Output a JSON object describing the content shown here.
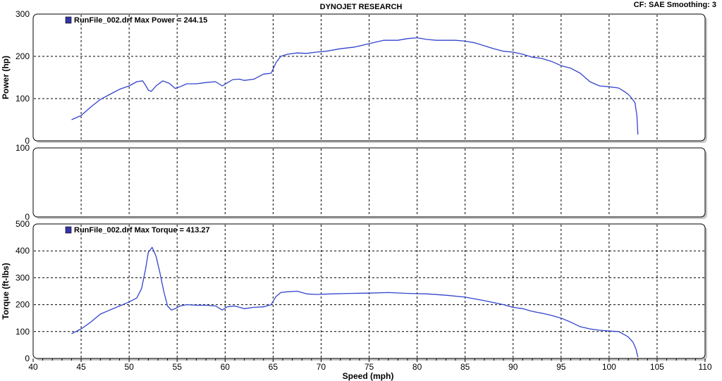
{
  "header": {
    "title": "DYNOJET RESEARCH",
    "settings": "CF: SAE  Smoothing: 3"
  },
  "chart_data": {
    "type": "line",
    "xlabel": "Speed (mph)",
    "xlim": [
      40,
      110
    ],
    "xticks": [
      "40",
      "45",
      "50",
      "55",
      "60",
      "65",
      "70",
      "75",
      "80",
      "85",
      "90",
      "95",
      "100",
      "105",
      "110"
    ],
    "grid": true,
    "panels": [
      {
        "ylabel": "Power (hp)",
        "ylim": [
          0,
          300
        ],
        "yticks": [
          "0",
          "100",
          "200",
          "300"
        ],
        "legend": "RunFile_002.drf Max Power = 244.15",
        "legend_position": "top-left",
        "series": [
          {
            "color": "#3344cc",
            "x": [
              44,
              45,
              46,
              47,
              48,
              49,
              50,
              50.8,
              51.4,
              51.7,
              52,
              52.3,
              52.8,
              53.5,
              54.2,
              54.8,
              55.3,
              56,
              57,
              58,
              59,
              59.7,
              60.2,
              60.8,
              61.5,
              62,
              63,
              64,
              64.8,
              65.3,
              65.8,
              66.5,
              67.5,
              68.5,
              69.5,
              70.5,
              72,
              73.5,
              75,
              76.5,
              78,
              79,
              80,
              81,
              82,
              83,
              84,
              85,
              86,
              87,
              88,
              89,
              90,
              91,
              92,
              93,
              94,
              95,
              96,
              97,
              98,
              99,
              100,
              101,
              101.5,
              102,
              102.4,
              102.7,
              102.9,
              103
            ],
            "values": [
              50,
              60,
              80,
              98,
              110,
              122,
              130,
              140,
              142,
              132,
              120,
              117,
              130,
              142,
              136,
              124,
              128,
              135,
              135,
              138,
              140,
              130,
              137,
              145,
              146,
              143,
              146,
              158,
              160,
              185,
              200,
              205,
              208,
              207,
              210,
              212,
              218,
              222,
              230,
              238,
              238,
              242,
              244,
              240,
              238,
              238,
              238,
              236,
              232,
              225,
              218,
              212,
              210,
              205,
              198,
              195,
              188,
              178,
              172,
              160,
              140,
              130,
              128,
              125,
              118,
              110,
              100,
              90,
              60,
              15
            ]
          }
        ]
      },
      {
        "ylim": [
          0,
          100
        ],
        "yticks": [
          "0",
          "100"
        ],
        "series": []
      },
      {
        "ylabel": "Torque (ft-lbs)",
        "ylim": [
          0,
          500
        ],
        "yticks": [
          "0",
          "100",
          "200",
          "300",
          "400",
          "500"
        ],
        "legend": "RunFile_002.drf Max Torque = 413.27",
        "legend_position": "top-left",
        "series": [
          {
            "color": "#3344cc",
            "x": [
              44,
              45,
              46,
              47,
              48,
              49,
              50,
              50.8,
              51.3,
              51.7,
              52,
              52.4,
              52.8,
              53.2,
              53.6,
              54,
              54.4,
              54.8,
              55.3,
              56,
              57,
              58,
              59,
              59.7,
              60.2,
              61,
              62,
              63,
              64,
              64.8,
              65.3,
              65.8,
              66.5,
              67.5,
              68.5,
              69.5,
              71,
              73,
              75,
              77,
              79,
              81,
              83,
              85,
              87,
              89,
              90,
              91,
              92,
              93,
              94,
              95,
              96,
              97,
              98,
              99,
              100,
              101,
              102,
              102.5,
              102.8,
              103
            ],
            "values": [
              92,
              110,
              135,
              165,
              180,
              195,
              210,
              225,
              260,
              330,
              395,
              413,
              380,
              320,
              250,
              195,
              180,
              185,
              195,
              200,
              198,
              198,
              195,
              180,
              192,
              195,
              185,
              190,
              192,
              200,
              230,
              245,
              248,
              250,
              240,
              238,
              240,
              242,
              243,
              245,
              242,
              240,
              235,
              228,
              215,
              200,
              190,
              185,
              175,
              168,
              160,
              150,
              135,
              118,
              110,
              105,
              102,
              100,
              80,
              60,
              35,
              5
            ]
          }
        ]
      }
    ]
  }
}
